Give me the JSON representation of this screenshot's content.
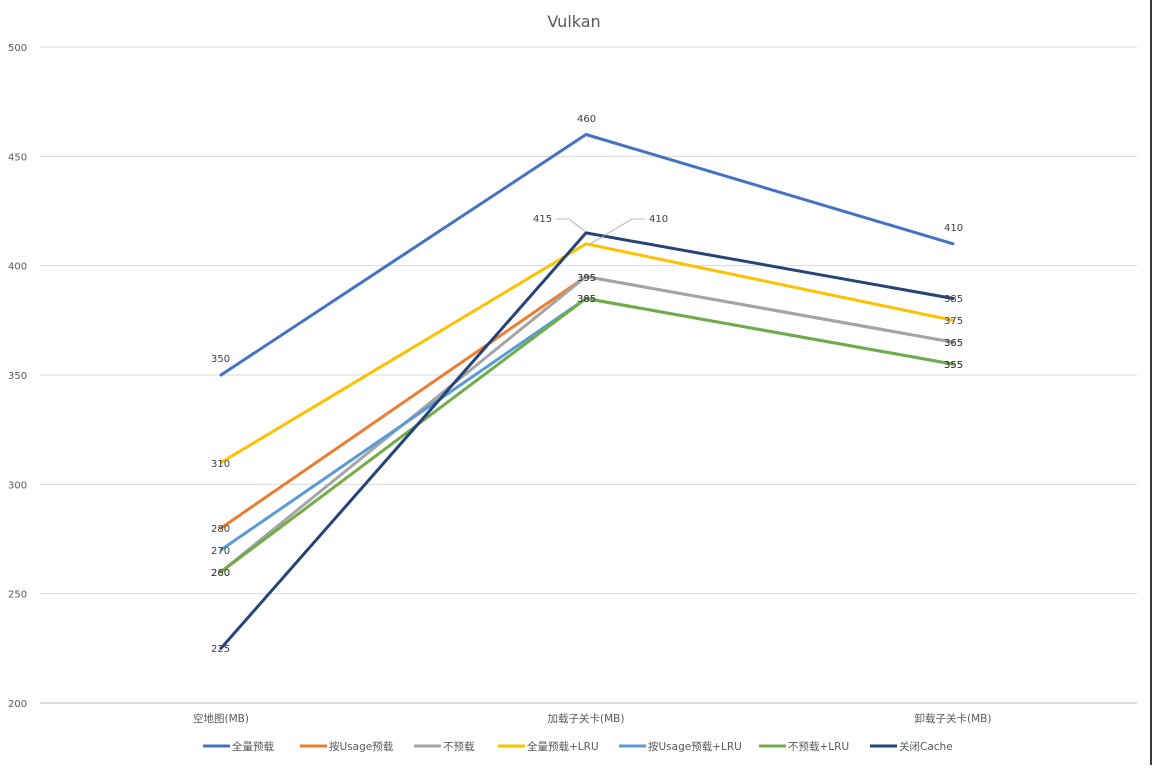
{
  "chart_data": {
    "type": "line",
    "title": "Vulkan",
    "xlabel": "",
    "ylabel": "",
    "categories": [
      "空地图(MB)",
      "加载子关卡(MB)",
      "卸载子关卡(MB)"
    ],
    "ylim": [
      200,
      500
    ],
    "yticks": [
      200,
      250,
      300,
      350,
      400,
      450,
      500
    ],
    "grid": true,
    "legend": "bottom",
    "series": [
      {
        "name": "全量预载",
        "color": "#4472C4",
        "values": [
          350,
          460,
          410
        ]
      },
      {
        "name": "按Usage预载",
        "color": "#ED7D31",
        "values": [
          280,
          395,
          365
        ]
      },
      {
        "name": "不预载",
        "color": "#A5A5A5",
        "values": [
          260,
          395,
          365
        ]
      },
      {
        "name": "全量预载+LRU",
        "color": "#FFC000",
        "values": [
          310,
          410,
          375
        ]
      },
      {
        "name": "按Usage预载+LRU",
        "color": "#5B9BD5",
        "values": [
          270,
          385,
          355
        ]
      },
      {
        "name": "不预载+LRU",
        "color": "#70AD47",
        "values": [
          260,
          385,
          355
        ]
      },
      {
        "name": "关闭Cache",
        "color": "#264478",
        "values": [
          225,
          415,
          385
        ]
      }
    ]
  }
}
